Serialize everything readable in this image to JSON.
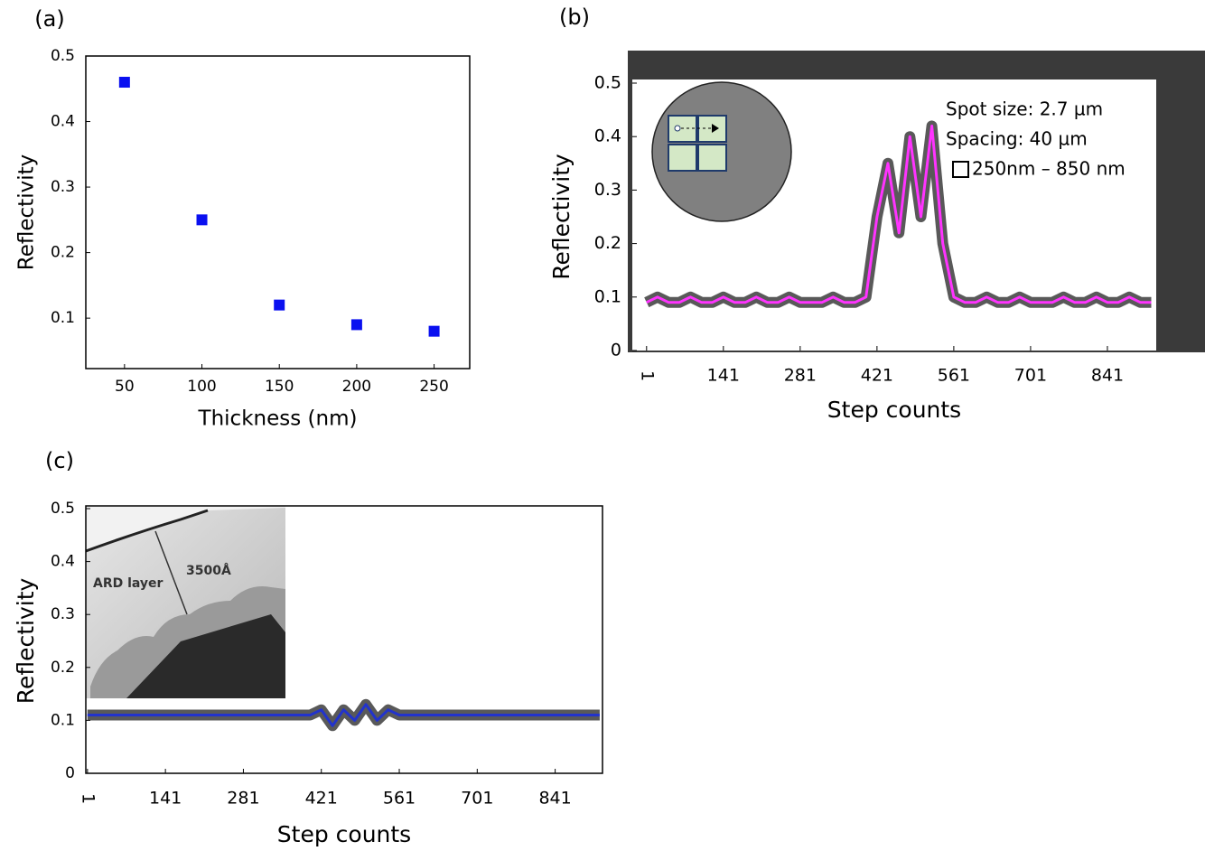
{
  "chart_data": [
    {
      "type": "scatter",
      "panel": "(a)",
      "x_label": "Thickness (nm)",
      "y_label": "Reflectivity",
      "x": [
        50,
        100,
        150,
        200,
        250
      ],
      "values": [
        0.46,
        0.25,
        0.12,
        0.09,
        0.08
      ],
      "color": "#0a10f0",
      "xlim": [
        25,
        273
      ],
      "ylim": [
        0.023,
        0.5
      ],
      "xticks": [
        50,
        100,
        150,
        200,
        250
      ],
      "yticks": [
        0.1,
        0.2,
        0.3,
        0.4,
        0.5
      ]
    },
    {
      "type": "line",
      "panel": "(b)",
      "x_label": "Step counts",
      "y_label": "Reflectivity",
      "x": [
        1,
        21,
        41,
        61,
        81,
        101,
        121,
        141,
        161,
        181,
        201,
        221,
        241,
        261,
        281,
        301,
        321,
        341,
        361,
        381,
        401,
        421,
        441,
        461,
        481,
        501,
        521,
        541,
        561,
        581,
        601,
        621,
        641,
        661,
        681,
        701,
        721,
        741,
        761,
        781,
        801,
        821,
        841,
        861,
        881,
        901,
        921
      ],
      "values": [
        0.09,
        0.1,
        0.09,
        0.09,
        0.1,
        0.09,
        0.09,
        0.1,
        0.09,
        0.09,
        0.1,
        0.09,
        0.09,
        0.1,
        0.09,
        0.09,
        0.09,
        0.1,
        0.09,
        0.09,
        0.1,
        0.25,
        0.35,
        0.22,
        0.4,
        0.25,
        0.42,
        0.2,
        0.1,
        0.09,
        0.09,
        0.1,
        0.09,
        0.09,
        0.1,
        0.09,
        0.09,
        0.09,
        0.1,
        0.09,
        0.09,
        0.1,
        0.09,
        0.09,
        0.1,
        0.09,
        0.09
      ],
      "color": "#ff33ff",
      "xlim": [
        -25,
        930
      ],
      "ylim": [
        0,
        0.5
      ],
      "xticks": [
        1,
        141,
        281,
        421,
        561,
        701,
        841
      ],
      "yticks": [
        0,
        0.1,
        0.2,
        0.3,
        0.4,
        0.5
      ],
      "annotations": [
        "Spot size: 2.7 µm",
        "Spacing: 40 µm",
        "250nm – 850 nm"
      ]
    },
    {
      "type": "line",
      "panel": "(c)",
      "x_label": "Step counts",
      "y_label": "Reflectivity",
      "x": [
        1,
        21,
        41,
        61,
        81,
        101,
        121,
        141,
        161,
        181,
        201,
        221,
        241,
        261,
        281,
        301,
        321,
        341,
        361,
        381,
        401,
        421,
        441,
        461,
        481,
        501,
        521,
        541,
        561,
        581,
        601,
        621,
        641,
        661,
        681,
        701,
        721,
        741,
        761,
        781,
        801,
        821,
        841,
        861,
        881,
        901,
        921
      ],
      "values": [
        0.11,
        0.11,
        0.11,
        0.11,
        0.11,
        0.11,
        0.11,
        0.11,
        0.11,
        0.11,
        0.11,
        0.11,
        0.11,
        0.11,
        0.11,
        0.11,
        0.11,
        0.11,
        0.11,
        0.11,
        0.11,
        0.12,
        0.09,
        0.12,
        0.1,
        0.13,
        0.1,
        0.12,
        0.11,
        0.11,
        0.11,
        0.11,
        0.11,
        0.11,
        0.11,
        0.11,
        0.11,
        0.11,
        0.11,
        0.11,
        0.11,
        0.11,
        0.11,
        0.11,
        0.11,
        0.11,
        0.11
      ],
      "color": "#2233cc",
      "xlim": [
        -2,
        926
      ],
      "ylim": [
        0,
        0.5
      ],
      "xticks": [
        1,
        141,
        281,
        421,
        561,
        701,
        841
      ],
      "yticks": [
        0,
        0.1,
        0.2,
        0.3,
        0.4,
        0.5
      ],
      "annotations": [
        "ARD layer",
        "3500Å"
      ]
    }
  ]
}
